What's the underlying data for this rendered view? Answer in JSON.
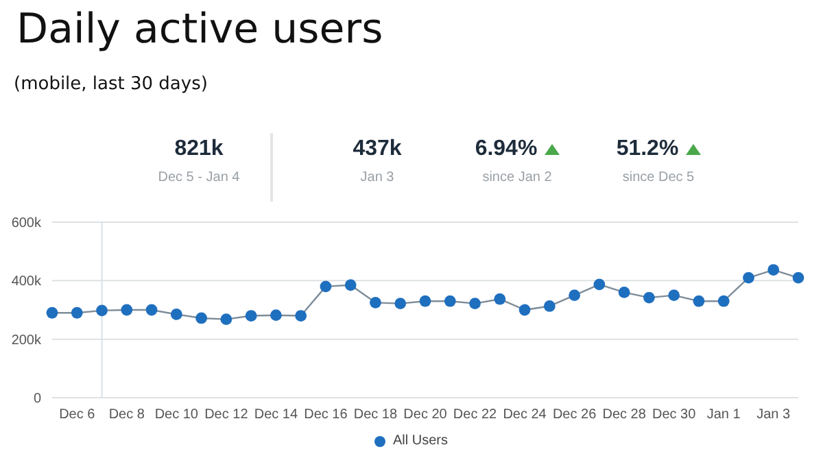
{
  "chart_data": {
    "type": "line",
    "title": "Daily active users",
    "subtitle": "(mobile, last 30 days)",
    "annotations": [
      "821k",
      "Dec 5 - Jan 4",
      "437k",
      "Jan 3",
      "6.94%",
      "since Jan 2",
      "51.2%",
      "since Dec 5"
    ],
    "categories": [
      null,
      "Dec 6",
      null,
      "Dec 8",
      null,
      "Dec 10",
      null,
      "Dec 12",
      null,
      "Dec 14",
      null,
      "Dec 16",
      null,
      "Dec 18",
      null,
      "Dec 20",
      null,
      "Dec 22",
      null,
      "Dec 24",
      null,
      "Dec 26",
      null,
      "Dec 28",
      null,
      "Dec 30",
      null,
      "Jan 1",
      null,
      "Jan 3",
      null
    ],
    "series": [
      {
        "name": "All Users",
        "color": "#1f6fbf",
        "values": [
          290000,
          290000,
          298000,
          300000,
          300000,
          285000,
          272000,
          268000,
          280000,
          282000,
          280000,
          380000,
          385000,
          325000,
          322000,
          330000,
          330000,
          322000,
          337000,
          300000,
          313000,
          350000,
          387000,
          360000,
          342000,
          350000,
          330000,
          330000,
          410000,
          437000,
          410000
        ]
      }
    ],
    "ylim": [
      0,
      600000
    ],
    "yticks": [
      {
        "value": 0,
        "label": "0"
      },
      {
        "value": 200000,
        "label": "200k"
      },
      {
        "value": 400000,
        "label": "400k"
      },
      {
        "value": 600000,
        "label": "600k"
      }
    ],
    "grid": "y",
    "legend": "bottom",
    "marker": "circle",
    "line_style": "solid"
  }
}
